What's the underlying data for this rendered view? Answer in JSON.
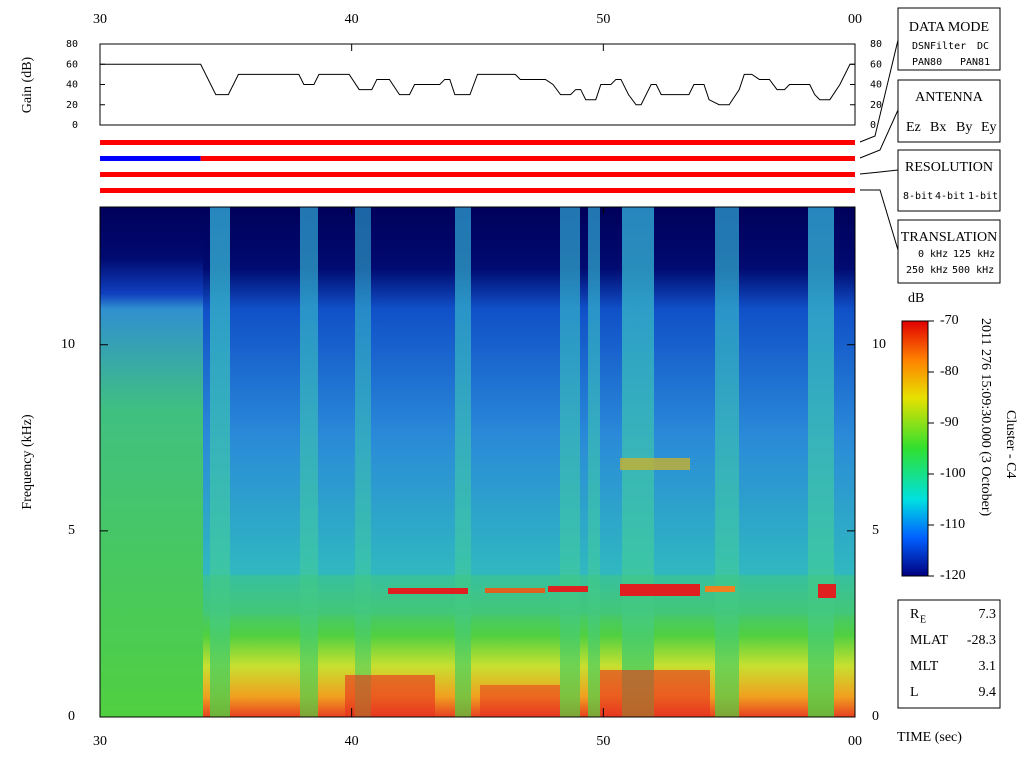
{
  "time_axis": {
    "lim": [
      30,
      60
    ],
    "ticks": [
      30,
      40,
      50,
      {
        "value": 60,
        "label": "00"
      }
    ],
    "label": "TIME (sec)"
  },
  "gain_panel": {
    "type": "line",
    "ylabel": "Gain (dB)",
    "ylim": [
      0,
      80
    ],
    "yticks": [
      0,
      20,
      40,
      60,
      80
    ],
    "color": "#000000",
    "x": [
      30.0,
      34.0,
      34.6,
      35.1,
      35.5,
      37.9,
      38.1,
      38.5,
      38.7,
      39.9,
      40.3,
      40.8,
      41.0,
      41.5,
      41.9,
      42.3,
      42.5,
      43.5,
      43.7,
      43.9,
      44.1,
      44.7,
      45.0,
      46.5,
      46.7,
      47.7,
      48.0,
      48.3,
      48.7,
      48.9,
      49.1,
      49.3,
      49.7,
      49.9,
      50.3,
      50.5,
      50.7,
      51.0,
      51.3,
      51.5,
      51.9,
      52.1,
      52.3,
      53.4,
      53.6,
      54.0,
      54.2,
      54.6,
      55.0,
      55.4,
      55.6,
      55.9,
      56.2,
      56.6,
      56.9,
      57.2,
      57.4,
      58.2,
      58.4,
      58.6,
      59.0,
      59.4,
      59.8,
      60.0
    ],
    "values": [
      60,
      60,
      30,
      30,
      50,
      50,
      40,
      40,
      50,
      50,
      35,
      35,
      45,
      45,
      30,
      30,
      40,
      40,
      45,
      45,
      30,
      30,
      50,
      50,
      45,
      45,
      40,
      30,
      30,
      35,
      35,
      25,
      25,
      40,
      40,
      45,
      45,
      30,
      20,
      20,
      40,
      40,
      30,
      30,
      40,
      40,
      25,
      20,
      20,
      35,
      50,
      50,
      45,
      45,
      35,
      35,
      40,
      40,
      30,
      25,
      25,
      40,
      60,
      60
    ]
  },
  "antenna_channels": [
    {
      "segments": [
        {
          "start": 30,
          "end": 60,
          "color": "#ff0000"
        }
      ]
    },
    {
      "segments": [
        {
          "start": 30,
          "end": 34,
          "color": "#0000ff"
        },
        {
          "start": 34,
          "end": 60,
          "color": "#ff0000"
        }
      ]
    },
    {
      "segments": [
        {
          "start": 30,
          "end": 60,
          "color": "#ff0000"
        }
      ]
    },
    {
      "segments": [
        {
          "start": 30,
          "end": 60,
          "color": "#ff0000"
        }
      ]
    }
  ],
  "spectrogram": {
    "ylabel": "Frequency (kHz)",
    "ylim": [
      0,
      13.7
    ],
    "yticks": [
      0,
      5,
      10
    ]
  },
  "colorbar": {
    "title": "dB",
    "lim": [
      -120,
      -70
    ],
    "ticks": [
      -120,
      -110,
      -100,
      -90,
      -80,
      -70
    ]
  },
  "event_label": "2011 276 15:09:30.000 (3 October)",
  "spacecraft_label": "Cluster - C4",
  "panels": {
    "data_mode": {
      "title": "DATA MODE",
      "items": [
        {
          "text": "DSN",
          "color": "#ff0000"
        },
        {
          "text": "Filter",
          "color": "#00cc00"
        },
        {
          "text": "DC",
          "color": "#0000ff"
        },
        {
          "text": "PAN80",
          "color": "#000000"
        },
        {
          "text": "PAN81",
          "color": "#00dddd"
        }
      ]
    },
    "antenna": {
      "title": "ANTENNA",
      "items": [
        {
          "text": "Ez",
          "color": "#ff0000"
        },
        {
          "text": "Bx",
          "color": "#00cc00"
        },
        {
          "text": "By",
          "color": "#0000ff"
        },
        {
          "text": "Ey",
          "color": "#000000"
        }
      ]
    },
    "resolution": {
      "title": "RESOLUTION",
      "items": [
        {
          "text": "8-bit",
          "color": "#ff0000"
        },
        {
          "text": "4-bit",
          "color": "#00cc00"
        },
        {
          "text": "1-bit",
          "color": "#0000ff"
        }
      ]
    },
    "translation": {
      "title": "TRANSLATION",
      "items": [
        {
          "text": "0 kHz",
          "color": "#ff0000"
        },
        {
          "text": "125 kHz",
          "color": "#00cc00"
        },
        {
          "text": "250 kHz",
          "color": "#0000ff"
        },
        {
          "text": "500 kHz",
          "color": "#000000"
        }
      ]
    }
  },
  "orbit": [
    {
      "label": "R",
      "subscript": "E",
      "value": 7.3
    },
    {
      "label": "MLAT",
      "value": -28.3
    },
    {
      "label": "MLT",
      "value": 3.1
    },
    {
      "label": "L",
      "value": 9.4
    }
  ]
}
